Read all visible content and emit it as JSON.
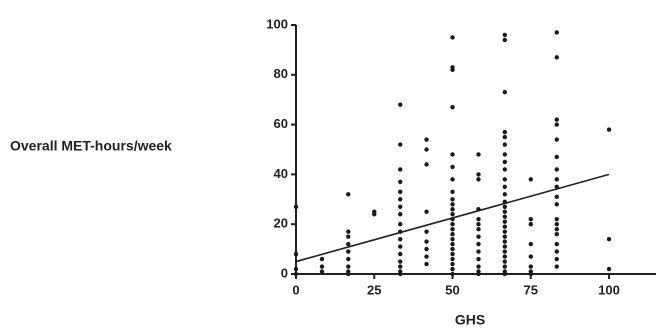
{
  "chart_data": {
    "type": "scatter",
    "xlabel": "GHS",
    "ylabel": "Overall MET-hours/week",
    "x": [
      0,
      0,
      0,
      0,
      8.3,
      8.3,
      8.3,
      16.7,
      16.7,
      16.7,
      16.7,
      16.7,
      16.7,
      16.7,
      16.7,
      16.7,
      25,
      25,
      33.3,
      33.3,
      33.3,
      33.3,
      33.3,
      33.3,
      33.3,
      33.3,
      33.3,
      33.3,
      33.3,
      33.3,
      33.3,
      33.3,
      33.3,
      33.3,
      33.3,
      41.7,
      41.7,
      41.7,
      41.7,
      41.7,
      41.7,
      41.7,
      41.7,
      41.7,
      50,
      50,
      50,
      50,
      50,
      50,
      50,
      50,
      50,
      50,
      50,
      50,
      50,
      50,
      50,
      50,
      50,
      50,
      50,
      50,
      50,
      50,
      50,
      50,
      58.3,
      58.3,
      58.3,
      58.3,
      58.3,
      58.3,
      58.3,
      58.3,
      58.3,
      58.3,
      58.3,
      58.3,
      58.3,
      58.3,
      66.7,
      66.7,
      66.7,
      66.7,
      66.7,
      66.7,
      66.7,
      66.7,
      66.7,
      66.7,
      66.7,
      66.7,
      66.7,
      66.7,
      66.7,
      66.7,
      66.7,
      66.7,
      66.7,
      66.7,
      66.7,
      66.7,
      66.7,
      66.7,
      66.7,
      66.7,
      66.7,
      66.7,
      75,
      75,
      75,
      75,
      75,
      75,
      75,
      75,
      83.3,
      83.3,
      83.3,
      83.3,
      83.3,
      83.3,
      83.3,
      83.3,
      83.3,
      83.3,
      83.3,
      83.3,
      83.3,
      83.3,
      83.3,
      83.3,
      83.3,
      83.3,
      83.3,
      100,
      100,
      100
    ],
    "values": [
      27,
      8,
      2,
      0,
      6,
      3,
      1,
      32,
      17,
      15,
      12,
      9,
      6,
      3,
      1,
      0,
      25,
      24,
      68,
      52,
      42,
      37,
      33,
      30,
      27,
      24,
      20,
      17,
      14,
      11,
      8,
      5,
      3,
      1,
      0,
      54,
      50,
      44,
      25,
      17,
      13,
      10,
      7,
      4,
      95,
      83,
      82,
      67,
      48,
      43,
      38,
      33,
      30,
      28,
      26,
      24,
      22,
      20,
      18,
      16,
      14,
      12,
      10,
      8,
      6,
      4,
      2,
      0,
      48,
      40,
      38,
      26,
      22,
      20,
      18,
      15,
      12,
      9,
      6,
      3,
      1,
      0,
      96,
      94,
      73,
      57,
      55,
      52,
      48,
      45,
      42,
      38,
      35,
      32,
      29,
      27,
      25,
      23,
      21,
      19,
      17,
      15,
      13,
      11,
      9,
      7,
      5,
      3,
      1,
      0,
      38,
      22,
      20,
      12,
      7,
      3,
      1,
      0,
      97,
      87,
      62,
      60,
      54,
      47,
      42,
      38,
      35,
      31,
      28,
      22,
      20,
      18,
      16,
      12,
      9,
      6,
      3,
      58,
      14,
      2
    ],
    "color": "#1a1a1a",
    "trend": {
      "x": [
        0,
        100
      ],
      "values": [
        5,
        40
      ]
    },
    "xlim": [
      0,
      115
    ],
    "xticks": [
      0,
      25,
      50,
      75,
      100
    ],
    "ylim": [
      0,
      100
    ],
    "yticks": [
      0,
      20,
      40,
      60,
      80,
      100
    ]
  }
}
